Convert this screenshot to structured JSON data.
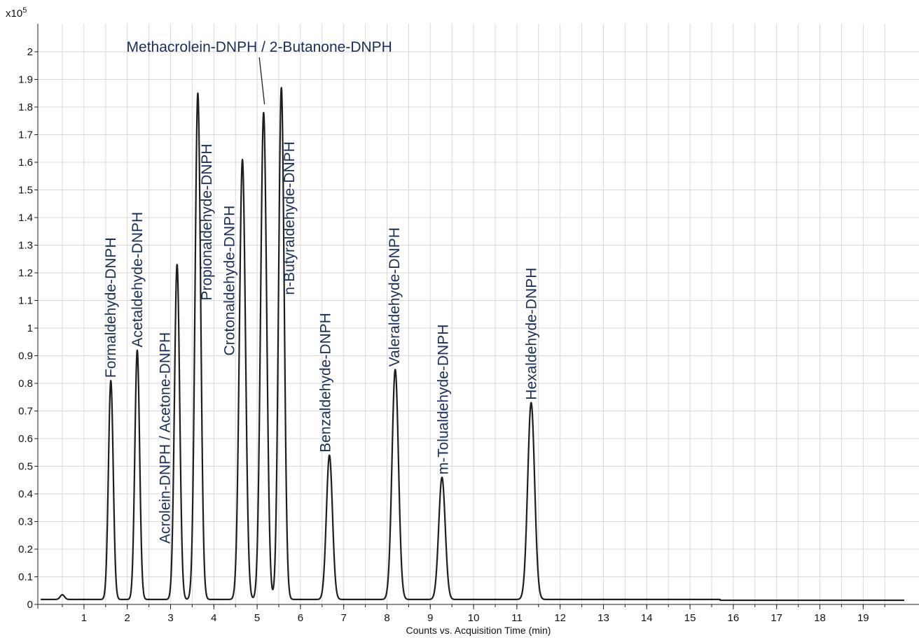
{
  "chart_data": {
    "type": "line",
    "title": "",
    "xlabel": "Counts vs. Acquisition Time (min)",
    "ylabel": "",
    "y_multiplier_label": "x10",
    "y_multiplier_exponent": "5",
    "xlim": [
      0,
      19.95
    ],
    "ylim": [
      0,
      2.05
    ],
    "x_major_ticks": [
      1,
      2,
      3,
      4,
      5,
      6,
      7,
      8,
      9,
      10,
      11,
      12,
      13,
      14,
      15,
      16,
      17,
      18,
      19
    ],
    "x_minor_step": 0.5,
    "y_ticks": [
      0,
      0.1,
      0.2,
      0.3,
      0.4,
      0.5,
      0.6,
      0.7,
      0.8,
      0.9,
      1,
      1.1,
      1.2,
      1.3,
      1.4,
      1.5,
      1.6,
      1.7,
      1.8,
      1.9,
      2
    ],
    "y_tick_labels": [
      "0",
      "0.1",
      "0.2",
      "0.3",
      "0.4",
      "0.5",
      "0.6",
      "0.7",
      "0.8",
      "0.9",
      "1",
      "1.1",
      "1.2",
      "1.3",
      "1.4",
      "1.5",
      "1.6",
      "1.7",
      "1.8",
      "1.9",
      "2"
    ],
    "grid": true,
    "baseline": 0.018,
    "series": [
      {
        "peaks": [
          {
            "rt": 0.5,
            "height": 0.035,
            "width": 0.05
          },
          {
            "rt": 1.62,
            "height": 0.81,
            "width": 0.055
          },
          {
            "rt": 2.23,
            "height": 0.92,
            "width": 0.055
          },
          {
            "rt": 3.15,
            "height": 1.23,
            "width": 0.06
          },
          {
            "rt": 3.63,
            "height": 1.85,
            "width": 0.065
          },
          {
            "rt": 4.66,
            "height": 1.61,
            "width": 0.07
          },
          {
            "rt": 5.15,
            "height": 1.78,
            "width": 0.07
          },
          {
            "rt": 5.56,
            "height": 1.87,
            "width": 0.065
          },
          {
            "rt": 6.67,
            "height": 0.54,
            "width": 0.07
          },
          {
            "rt": 8.19,
            "height": 0.85,
            "width": 0.075
          },
          {
            "rt": 9.27,
            "height": 0.46,
            "width": 0.075
          },
          {
            "rt": 11.33,
            "height": 0.73,
            "width": 0.08
          }
        ]
      }
    ],
    "annotations": [
      {
        "text": "Formaldehyde-DNPH",
        "x": 1.62,
        "y": 0.82,
        "orientation": "vertical"
      },
      {
        "text": "Acetaldehyde-DNPH",
        "x": 2.23,
        "y": 0.93,
        "orientation": "vertical"
      },
      {
        "text": "Acrolein-DNPH / Acetone-DNPH",
        "x": 2.87,
        "y": 0.22,
        "orientation": "vertical"
      },
      {
        "text": "Propionaldehyde-DNPH",
        "x": 3.83,
        "y": 1.1,
        "orientation": "vertical"
      },
      {
        "text": "Crotonaldehyde-DNPH",
        "x": 4.36,
        "y": 0.9,
        "orientation": "vertical"
      },
      {
        "text": "Methacrolein-DNPH / 2-Butanone-DNPH",
        "x": 5.05,
        "y": 2.0,
        "orientation": "horizontal"
      },
      {
        "text": "n-Butyraldehyde-DNPH",
        "x": 5.74,
        "y": 1.12,
        "orientation": "vertical"
      },
      {
        "text": "Benzaldehyde-DNPH",
        "x": 6.58,
        "y": 0.55,
        "orientation": "vertical"
      },
      {
        "text": "Valeraldehyde-DNPH",
        "x": 8.17,
        "y": 0.86,
        "orientation": "vertical"
      },
      {
        "text": "m-Tolualdehyde-DNPH",
        "x": 9.3,
        "y": 0.47,
        "orientation": "vertical"
      },
      {
        "text": "Hexaldehyde-DNPH",
        "x": 11.33,
        "y": 0.74,
        "orientation": "vertical"
      }
    ]
  }
}
